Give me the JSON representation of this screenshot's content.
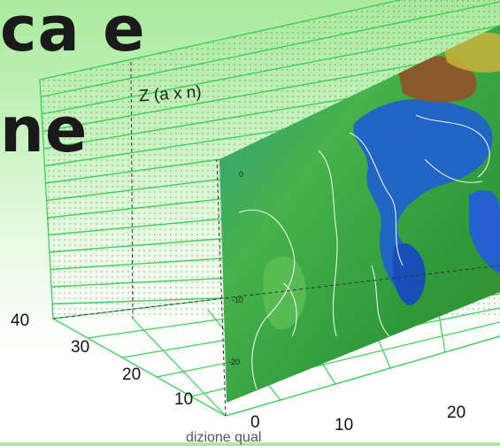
{
  "title": {
    "line1": "ca e",
    "line2": "ne"
  },
  "chart": {
    "z_axis_label": "Z (a x n)",
    "y_ticks": [
      "40",
      "30",
      "20",
      "10"
    ],
    "x_ticks": [
      "0",
      "10",
      "20"
    ],
    "surface_ticks": [
      "0",
      "-10",
      "-20"
    ]
  },
  "footer": {
    "text": "dizione qual"
  },
  "colors": {
    "grid": "#3ccf5a",
    "surface_green": "#3fa63b",
    "surface_blue": "#1f5fd0",
    "peak_brown": "#8a5a2a"
  }
}
